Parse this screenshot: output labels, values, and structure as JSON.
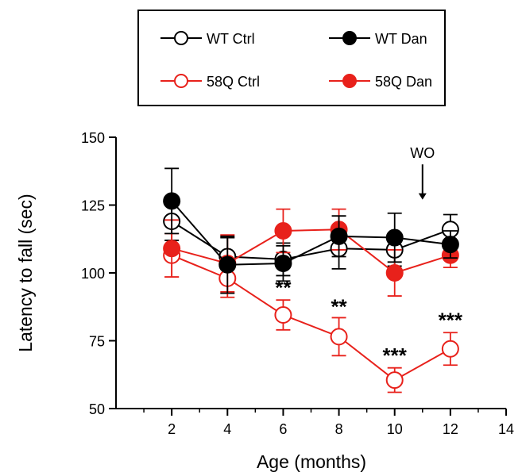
{
  "chart_data": {
    "type": "line",
    "xlabel": "Age (months)",
    "ylabel": "Latency to fall (sec)",
    "xlim": [
      0,
      14
    ],
    "ylim": [
      50,
      150
    ],
    "xticks": [
      2,
      4,
      6,
      8,
      10,
      12,
      14
    ],
    "yticks": [
      50,
      75,
      100,
      125,
      150
    ],
    "x": [
      2,
      4,
      6,
      8,
      10,
      12
    ],
    "legend_position": "top",
    "series": [
      {
        "name": "WT Ctrl",
        "color": "#000000",
        "filled": false,
        "values": [
          119,
          106,
          105,
          109,
          108.5,
          116
        ],
        "errors": [
          7,
          7,
          6,
          7.5,
          6,
          5.5
        ]
      },
      {
        "name": "WT Dan",
        "color": "#000000",
        "filled": true,
        "values": [
          126.5,
          103,
          103.5,
          113.5,
          113,
          110.5
        ],
        "errors": [
          12,
          10.5,
          6.5,
          7.5,
          9,
          5
        ]
      },
      {
        "name": "58Q Ctrl",
        "color": "#e8211b",
        "filled": false,
        "values": [
          106.5,
          98,
          84.5,
          76.5,
          60.5,
          72
        ],
        "errors": [
          8,
          7,
          5.5,
          7,
          4.5,
          6
        ]
      },
      {
        "name": "58Q Dan",
        "color": "#e8211b",
        "filled": true,
        "values": [
          109,
          103.5,
          115.5,
          116,
          100,
          106.5
        ],
        "errors": [
          10.5,
          10.5,
          8,
          7.5,
          8.5,
          4.5
        ]
      }
    ],
    "significance": [
      {
        "x": 6,
        "y": 92,
        "label": "**"
      },
      {
        "x": 8,
        "y": 85,
        "label": "**"
      },
      {
        "x": 10,
        "y": 67,
        "label": "***"
      },
      {
        "x": 12,
        "y": 80,
        "label": "***"
      }
    ],
    "annotation": {
      "text": "WO",
      "x": 11,
      "arrow_from": 140,
      "arrow_to": 127
    }
  }
}
